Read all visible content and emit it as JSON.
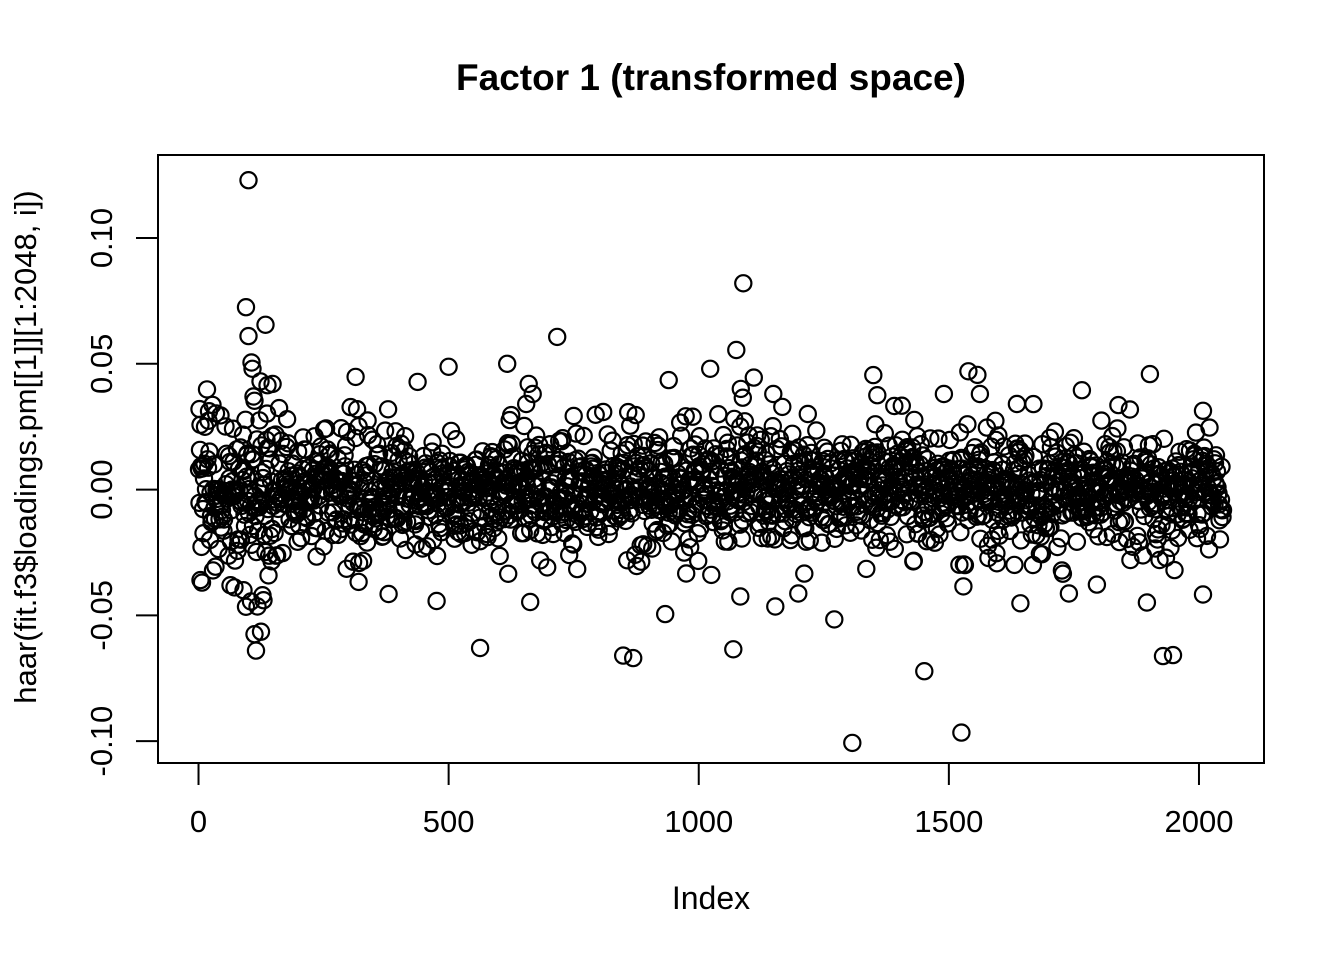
{
  "page": {
    "background": "#ffffff",
    "foreground": "#000000"
  },
  "chart_data": {
    "type": "scatter",
    "title": "Factor 1 (transformed space)",
    "xlabel": "Index",
    "ylabel": "haar(fit.f3$loadings.pm[[1]][1:2048, i])",
    "x_ticks": [
      0,
      500,
      1000,
      1500,
      2000
    ],
    "y_ticks": [
      -0.1,
      -0.05,
      0.0,
      0.05,
      0.1
    ],
    "xlim": [
      -81,
      2130
    ],
    "ylim": [
      -0.1087,
      0.133
    ],
    "index_range": [
      1,
      2048
    ],
    "n_points": 2048,
    "grid": false,
    "legend": null,
    "frame": "box",
    "marker": {
      "shape": "open-circle",
      "color": "#000000"
    },
    "bulk_distribution": {
      "mean": 0,
      "sd_core": 0.0105,
      "sd_tail": 0.019,
      "tail_fraction": 0.12,
      "clip": 0.034,
      "left_boost": {
        "to_index": 170,
        "factor": 1.45
      },
      "seed": 20480
    },
    "notable_points": [
      [
        2,
        0.032
      ],
      [
        4,
        -0.036
      ],
      [
        7,
        -0.037
      ],
      [
        90,
        -0.04
      ],
      [
        95,
        0.0725
      ],
      [
        100,
        0.123
      ],
      [
        100,
        0.061
      ],
      [
        105,
        -0.0445
      ],
      [
        106,
        0.0505
      ],
      [
        108,
        0.048
      ],
      [
        110,
        0.037
      ],
      [
        112,
        -0.0575
      ],
      [
        115,
        -0.064
      ],
      [
        118,
        -0.0465
      ],
      [
        124,
        0.043
      ],
      [
        125,
        -0.0565
      ],
      [
        130,
        -0.044
      ],
      [
        134,
        0.0655
      ],
      [
        138,
        0.0415
      ],
      [
        148,
        0.042
      ],
      [
        314,
        0.0448
      ],
      [
        320,
        -0.0367
      ],
      [
        380,
        -0.0415
      ],
      [
        438,
        0.0428
      ],
      [
        476,
        -0.0443
      ],
      [
        500,
        0.0488
      ],
      [
        563,
        -0.063
      ],
      [
        617,
        0.05
      ],
      [
        619,
        -0.0335
      ],
      [
        655,
        0.034
      ],
      [
        660,
        0.042
      ],
      [
        663,
        -0.0447
      ],
      [
        668,
        0.038
      ],
      [
        717,
        0.0607
      ],
      [
        849,
        -0.066
      ],
      [
        869,
        -0.067
      ],
      [
        933,
        -0.0495
      ],
      [
        940,
        0.0435
      ],
      [
        1023,
        0.048
      ],
      [
        1069,
        -0.0635
      ],
      [
        1075,
        0.0555
      ],
      [
        1083,
        -0.0425
      ],
      [
        1084,
        0.04
      ],
      [
        1088,
        0.0365
      ],
      [
        1089,
        0.082
      ],
      [
        1110,
        0.0445
      ],
      [
        1149,
        0.038
      ],
      [
        1153,
        -0.0465
      ],
      [
        1199,
        -0.0413
      ],
      [
        1271,
        -0.0516
      ],
      [
        1307,
        -0.1007
      ],
      [
        1349,
        0.0455
      ],
      [
        1357,
        0.0375
      ],
      [
        1451,
        -0.0722
      ],
      [
        1490,
        0.038
      ],
      [
        1525,
        -0.0966
      ],
      [
        1529,
        -0.0385
      ],
      [
        1539,
        0.047
      ],
      [
        1557,
        0.0456
      ],
      [
        1562,
        0.038
      ],
      [
        1636,
        0.034
      ],
      [
        1643,
        -0.0452
      ],
      [
        1740,
        -0.0413
      ],
      [
        1766,
        0.0395
      ],
      [
        1796,
        -0.0378
      ],
      [
        1896,
        -0.0449
      ],
      [
        1902,
        0.0459
      ],
      [
        1928,
        -0.0662
      ],
      [
        1948,
        -0.0658
      ],
      [
        2008,
        -0.0417
      ]
    ]
  }
}
